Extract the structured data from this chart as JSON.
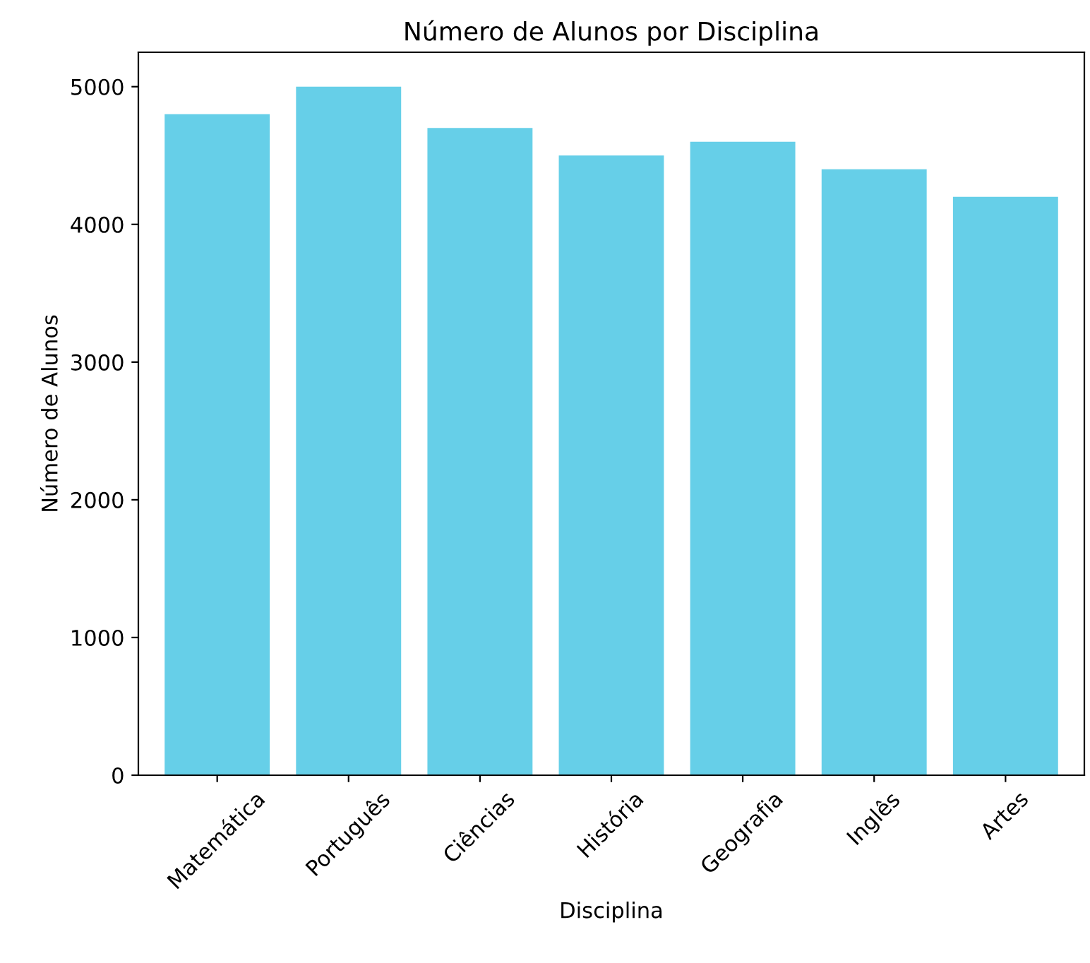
{
  "chart_data": {
    "type": "bar",
    "title": "Número de Alunos por Disciplina",
    "xlabel": "Disciplina",
    "ylabel": "Número de Alunos",
    "categories": [
      "Matemática",
      "Português",
      "Ciências",
      "História",
      "Geografia",
      "Inglês",
      "Artes"
    ],
    "values": [
      4800,
      5000,
      4700,
      4500,
      4600,
      4400,
      4200
    ],
    "color": "#66cfe8",
    "ylim": [
      0,
      5250
    ],
    "yticks": [
      0,
      1000,
      2000,
      3000,
      4000,
      5000
    ],
    "grid": false,
    "legend": false
  }
}
